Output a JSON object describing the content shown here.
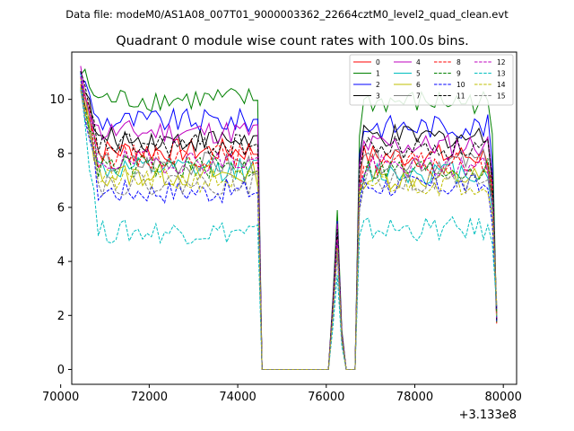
{
  "chart_data": {
    "type": "line",
    "supertitle": "Data file: modeM0/AS1A08_007T01_9000003362_22664cztM0_level2_quad_clean.evt",
    "title": "Quadrant 0 module wise count rates with 100.0s bins.",
    "xlabel": "",
    "ylabel": "",
    "x_offset_label": "+3.133e8",
    "xlim": [
      70250,
      80300
    ],
    "ylim": [
      -0.55,
      11.75
    ],
    "x_ticks": [
      70000,
      72000,
      74000,
      76000,
      78000,
      80000
    ],
    "x_tick_labels": [
      "70000",
      "72000",
      "74000",
      "76000",
      "78000",
      "80000"
    ],
    "y_ticks": [
      0,
      2,
      4,
      6,
      8,
      10
    ],
    "y_tick_labels": [
      "0",
      "2",
      "4",
      "6",
      "8",
      "10"
    ],
    "grid": false,
    "legend_position": "top-right",
    "segments": [
      {
        "x_start": 70450,
        "x_end": 74450,
        "step": 100
      },
      {
        "x_start": 76150,
        "x_end": 76350,
        "step": 100
      },
      {
        "x_start": 76750,
        "x_end": 79850,
        "step": 100
      }
    ],
    "gaps_zero_at": [
      74550,
      76050,
      76450,
      76650
    ],
    "series": [
      {
        "name": "0",
        "color": "#ff0000",
        "dash": "solid",
        "mean1": 8.1,
        "mean2": 7.9,
        "spike": 5.0
      },
      {
        "name": "1",
        "color": "#008000",
        "dash": "solid",
        "mean1": 10.0,
        "mean2": 9.9,
        "spike": 5.9
      },
      {
        "name": "2",
        "color": "#0000ff",
        "dash": "solid",
        "mean1": 9.2,
        "mean2": 9.0,
        "spike": 5.5
      },
      {
        "name": "3",
        "color": "#000000",
        "dash": "solid",
        "mean1": 8.5,
        "mean2": 8.6,
        "spike": 5.3
      },
      {
        "name": "4",
        "color": "#bf00bf",
        "dash": "solid",
        "mean1": 8.8,
        "mean2": 8.3,
        "spike": 5.4
      },
      {
        "name": "5",
        "color": "#00bfbf",
        "dash": "solid",
        "mean1": 7.4,
        "mean2": 7.3,
        "spike": 4.7
      },
      {
        "name": "6",
        "color": "#bfbf00",
        "dash": "solid",
        "mean1": 7.2,
        "mean2": 7.1,
        "spike": 4.6
      },
      {
        "name": "7",
        "color": "#808080",
        "dash": "solid",
        "mean1": 7.6,
        "mean2": 7.7,
        "spike": 4.8
      },
      {
        "name": "8",
        "color": "#ff0000",
        "dash": "dashed",
        "mean1": 7.9,
        "mean2": 7.6,
        "spike": 4.9
      },
      {
        "name": "9",
        "color": "#008000",
        "dash": "dashed",
        "mean1": 7.5,
        "mean2": 7.4,
        "spike": 4.7
      },
      {
        "name": "10",
        "color": "#0000ff",
        "dash": "dashed",
        "mean1": 6.6,
        "mean2": 6.8,
        "spike": 4.3
      },
      {
        "name": "11",
        "color": "#000000",
        "dash": "dashed",
        "mean1": 8.3,
        "mean2": 8.2,
        "spike": 5.2
      },
      {
        "name": "12",
        "color": "#bf00bf",
        "dash": "dashed",
        "mean1": 7.7,
        "mean2": 7.5,
        "spike": 4.8
      },
      {
        "name": "13",
        "color": "#00bfbf",
        "dash": "dashed",
        "mean1": 5.1,
        "mean2": 5.2,
        "spike": 3.5
      },
      {
        "name": "14",
        "color": "#bfbf00",
        "dash": "dashed",
        "mean1": 7.0,
        "mean2": 6.9,
        "spike": 4.5
      },
      {
        "name": "15",
        "color": "#808080",
        "dash": "dashed",
        "mean1": 6.9,
        "mean2": 7.0,
        "spike": 4.4
      }
    ],
    "end_value": 1.7,
    "start_peak": 11.1
  }
}
